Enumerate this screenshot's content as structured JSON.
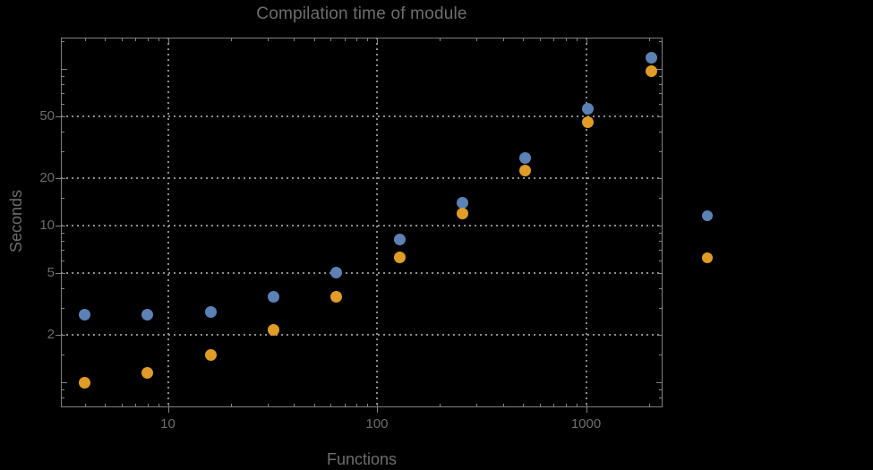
{
  "chart_data": {
    "type": "scatter",
    "title": "Compilation time of module",
    "xlabel": "Functions",
    "ylabel": "Seconds",
    "x_scale": "log",
    "y_scale": "log",
    "x_range": [
      3.1,
      2320
    ],
    "y_range": [
      0.69,
      158
    ],
    "x_ticks": [
      10,
      100,
      1000
    ],
    "y_ticks": [
      2,
      5,
      10,
      20,
      50
    ],
    "grid": "dotted lines at labeled ticks only",
    "legend_position": "outside right, color markers only (no visible text labels)",
    "x": [
      4,
      8,
      16,
      32,
      64,
      128,
      256,
      512,
      1024,
      2048
    ],
    "series": [
      {
        "name": "blue-series",
        "color": "#5B81B5",
        "values": [
          2.7,
          2.7,
          2.8,
          3.5,
          5.0,
          8.2,
          14,
          27,
          56,
          118
        ]
      },
      {
        "name": "orange-series",
        "color": "#E09C26",
        "values": [
          1.0,
          1.15,
          1.5,
          2.15,
          3.5,
          6.3,
          12,
          22.5,
          46,
          97
        ]
      }
    ]
  },
  "legend": {
    "markers": [
      {
        "name": "blue-series-marker",
        "color": "#5B81B5"
      },
      {
        "name": "orange-series-marker",
        "color": "#E09C26"
      }
    ]
  },
  "colors": {
    "background": "#000000",
    "frame": "#808080",
    "grid": "#8C8C8C",
    "tick": "#828282",
    "text": "#6D6D6D",
    "series_blue": "#5B81B5",
    "series_orange": "#E09C26"
  }
}
